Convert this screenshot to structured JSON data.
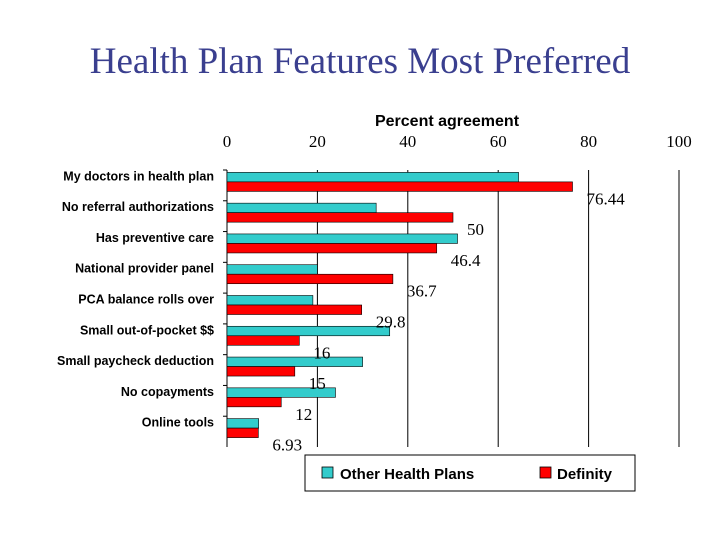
{
  "slide": {
    "title": "Health Plan Features Most Preferred"
  },
  "chart_data": {
    "type": "bar",
    "orientation": "horizontal",
    "title": "",
    "xlabel": "Percent agreement",
    "ylabel": "",
    "xlim": [
      0,
      100
    ],
    "x_ticks": [
      "0",
      "20",
      "40",
      "60",
      "80",
      "100"
    ],
    "grid": "vertical",
    "legend_position": "bottom",
    "categories": [
      "My doctors in health plan",
      "No referral authorizations",
      "Has preventive care",
      "National provider panel",
      "PCA balance rolls over",
      "Small out-of-pocket $$",
      "Small paycheck deduction",
      "No copayments",
      "Online tools"
    ],
    "series": [
      {
        "name": "Other Health Plans",
        "color": "#33cccc",
        "values": [
          64.5,
          33,
          51,
          20,
          19,
          36,
          30,
          24,
          7
        ]
      },
      {
        "name": "Definity",
        "color": "#ff0000",
        "values": [
          76.44,
          50,
          46.4,
          36.7,
          29.8,
          16,
          15,
          12,
          6.93
        ],
        "data_labels": [
          "76.44",
          "50",
          "46.4",
          "36.7",
          "29.8",
          "16",
          "15",
          "12",
          "6.93"
        ]
      }
    ]
  }
}
